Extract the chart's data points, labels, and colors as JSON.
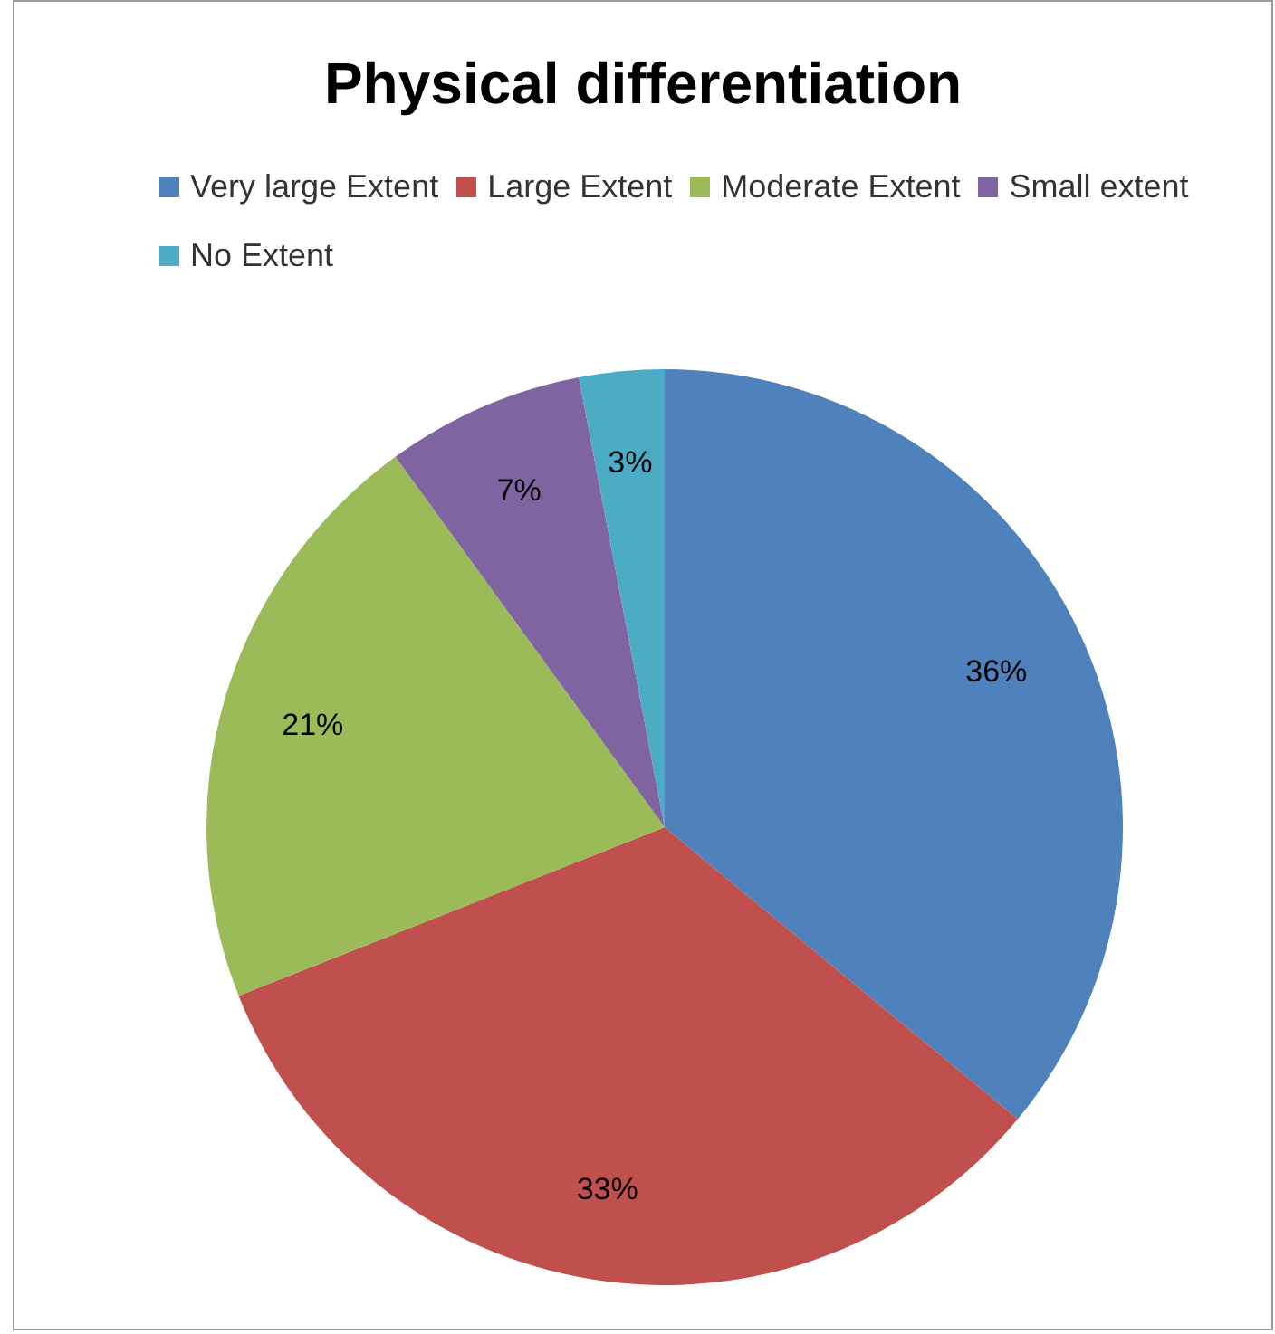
{
  "chart_data": {
    "type": "pie",
    "title": "Physical differentiation",
    "categories": [
      "Very large Extent",
      "Large Extent",
      "Moderate Extent",
      "Small extent",
      "No Extent"
    ],
    "values": [
      36,
      33,
      21,
      7,
      3
    ],
    "colors": [
      "#4f81bd",
      "#c0504d",
      "#9bbb59",
      "#8064a2",
      "#4bacc6"
    ],
    "value_labels": [
      "36%",
      "33%",
      "21%",
      "7%",
      "3%"
    ],
    "legend": "top"
  }
}
